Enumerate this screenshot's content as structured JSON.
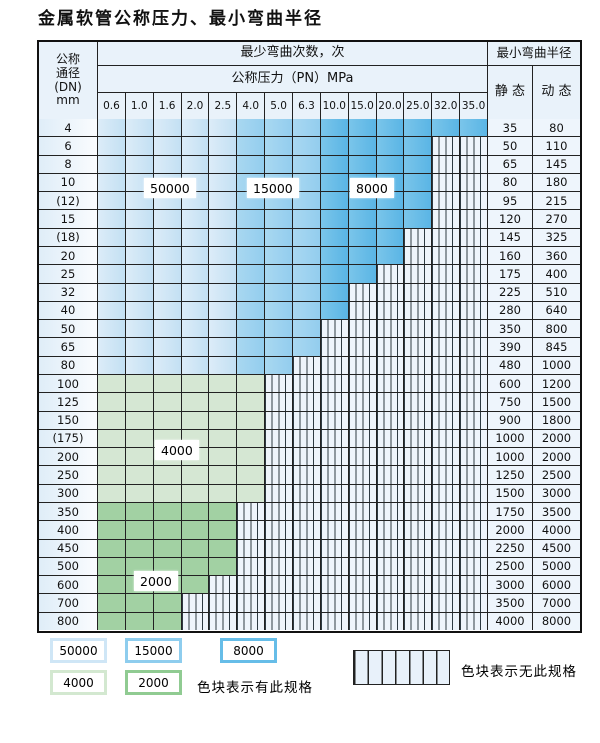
{
  "title": "金属软管公称压力、最小弯曲半径",
  "header": {
    "dn_label_lines": [
      "公称",
      "通径",
      "(DN)",
      "mm"
    ],
    "bend_times_label": "最少弯曲次数，次",
    "pressure_label": "公称压力（PN）MPa",
    "pressure_columns": [
      "0.6",
      "1.0",
      "1.6",
      "2.0",
      "2.5",
      "4.0",
      "5.0",
      "6.3",
      "10.0",
      "15.0",
      "20.0",
      "25.0",
      "32.0",
      "35.0"
    ],
    "radius_label": "最小弯曲半径",
    "static_label": "静 态",
    "dynamic_label": "动 态"
  },
  "bands": {
    "blue_50000_last_col": 4,
    "blue_15000_last_col": 7,
    "labels": {
      "b50000": "50000",
      "b15000": "15000",
      "b8000": "8000",
      "g4000": "4000",
      "g2000": "2000"
    }
  },
  "colors": {
    "band_50000": "#cde4f5",
    "band_15000": "#9ed3ef",
    "band_8000": "#66bce8",
    "band_4000": "#d5e7d3",
    "band_2000": "#a2d1a3",
    "hatch_bg": "#eef4fb",
    "grid": "#222222",
    "header_bg": "#e9f2fa"
  },
  "rows": [
    {
      "dn": "4",
      "static": "35",
      "dynamic": "80",
      "type": "blue",
      "last": 13
    },
    {
      "dn": "6",
      "static": "50",
      "dynamic": "110",
      "type": "blue",
      "last": 11
    },
    {
      "dn": "8",
      "static": "65",
      "dynamic": "145",
      "type": "blue",
      "last": 11
    },
    {
      "dn": "10",
      "static": "80",
      "dynamic": "180",
      "type": "blue",
      "last": 11
    },
    {
      "dn": "(12)",
      "static": "95",
      "dynamic": "215",
      "type": "blue",
      "last": 11
    },
    {
      "dn": "15",
      "static": "120",
      "dynamic": "270",
      "type": "blue",
      "last": 11
    },
    {
      "dn": "(18)",
      "static": "145",
      "dynamic": "325",
      "type": "blue",
      "last": 10
    },
    {
      "dn": "20",
      "static": "160",
      "dynamic": "360",
      "type": "blue",
      "last": 10
    },
    {
      "dn": "25",
      "static": "175",
      "dynamic": "400",
      "type": "blue",
      "last": 9
    },
    {
      "dn": "32",
      "static": "225",
      "dynamic": "510",
      "type": "blue",
      "last": 8
    },
    {
      "dn": "40",
      "static": "280",
      "dynamic": "640",
      "type": "blue",
      "last": 8
    },
    {
      "dn": "50",
      "static": "350",
      "dynamic": "800",
      "type": "blue",
      "last": 7
    },
    {
      "dn": "65",
      "static": "390",
      "dynamic": "845",
      "type": "blue",
      "last": 7
    },
    {
      "dn": "80",
      "static": "480",
      "dynamic": "1000",
      "type": "blue",
      "last": 6
    },
    {
      "dn": "100",
      "static": "600",
      "dynamic": "1200",
      "type": "g4000",
      "last": 5
    },
    {
      "dn": "125",
      "static": "750",
      "dynamic": "1500",
      "type": "g4000",
      "last": 5
    },
    {
      "dn": "150",
      "static": "900",
      "dynamic": "1800",
      "type": "g4000",
      "last": 5
    },
    {
      "dn": "(175)",
      "static": "1000",
      "dynamic": "2000",
      "type": "g4000",
      "last": 5
    },
    {
      "dn": "200",
      "static": "1000",
      "dynamic": "2000",
      "type": "g4000",
      "last": 5
    },
    {
      "dn": "250",
      "static": "1250",
      "dynamic": "2500",
      "type": "g4000",
      "last": 5
    },
    {
      "dn": "300",
      "static": "1500",
      "dynamic": "3000",
      "type": "g4000",
      "last": 5
    },
    {
      "dn": "350",
      "static": "1750",
      "dynamic": "3500",
      "type": "g2000",
      "last": 4
    },
    {
      "dn": "400",
      "static": "2000",
      "dynamic": "4000",
      "type": "g2000",
      "last": 4
    },
    {
      "dn": "450",
      "static": "2250",
      "dynamic": "4500",
      "type": "g2000",
      "last": 4
    },
    {
      "dn": "500",
      "static": "2500",
      "dynamic": "5000",
      "type": "g2000",
      "last": 4
    },
    {
      "dn": "600",
      "static": "3000",
      "dynamic": "6000",
      "type": "g2000",
      "last": 3
    },
    {
      "dn": "700",
      "static": "3500",
      "dynamic": "7000",
      "type": "g2000",
      "last": 2
    },
    {
      "dn": "800",
      "static": "4000",
      "dynamic": "8000",
      "type": "g2000",
      "last": 2
    }
  ],
  "overlay_labels": [
    "50000",
    "15000",
    "8000",
    "4000",
    "2000"
  ],
  "legend": {
    "items": [
      {
        "label": "50000",
        "color": "#cfe6f6"
      },
      {
        "label": "15000",
        "color": "#8ecdee"
      },
      {
        "label": "8000",
        "color": "#66bde8"
      },
      {
        "label": "4000",
        "color": "#d3e8d0"
      },
      {
        "label": "2000",
        "color": "#90cb92"
      }
    ],
    "has_spec_text": "色块表示有此规格",
    "no_spec_text": "色块表示无此规格"
  }
}
